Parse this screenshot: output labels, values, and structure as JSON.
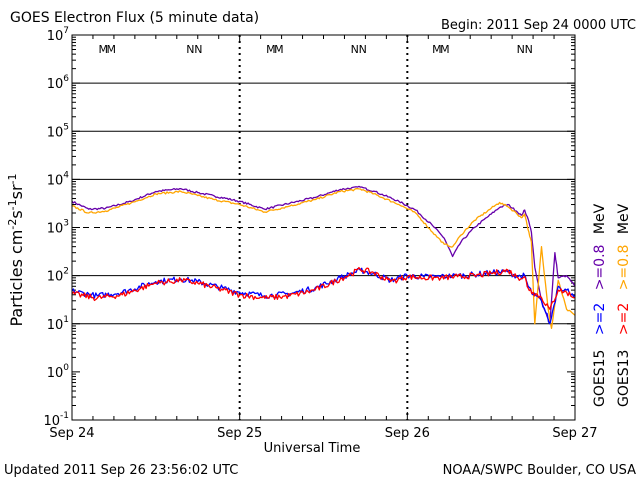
{
  "title": "GOES Electron Flux (5 minute data)",
  "begin_label": "Begin: 2011 Sep 24 0000 UTC",
  "updated_label": "Updated 2011 Sep 26 23:56:02 UTC",
  "credit_label": "NOAA/SWPC Boulder, CO USA",
  "colors": {
    "goes15_low": "#0000ff",
    "goes15_high": "#6600aa",
    "goes13_low": "#ff0000",
    "goes13_high": "#ffa500"
  },
  "chart_data": {
    "type": "line",
    "title": "GOES Electron Flux (5 minute data)",
    "xlabel": "Universal Time",
    "ylabel": "Particles cm-2s-1sr-1",
    "x_units": "days since 2011 Sep 24 0000 UTC",
    "xlim": [
      0,
      3
    ],
    "ylim_log10": [
      -1,
      7
    ],
    "y_scale": "log",
    "x_ticks": [
      {
        "value": 0,
        "label": "Sep 24"
      },
      {
        "value": 1,
        "label": "Sep 25"
      },
      {
        "value": 2,
        "label": "Sep 26"
      },
      {
        "value": 3,
        "label": "Sep 27"
      }
    ],
    "y_ticks": [
      {
        "exp": 7,
        "label_base": "10",
        "label_exp": "7"
      },
      {
        "exp": 6,
        "label_base": "10",
        "label_exp": "6"
      },
      {
        "exp": 5,
        "label_base": "10",
        "label_exp": "5"
      },
      {
        "exp": 4,
        "label_base": "10",
        "label_exp": "4"
      },
      {
        "exp": 3,
        "label_base": "10",
        "label_exp": "3"
      },
      {
        "exp": 2,
        "label_base": "10",
        "label_exp": "2"
      },
      {
        "exp": 1,
        "label_base": "10",
        "label_exp": "1"
      },
      {
        "exp": 0,
        "label_base": "10",
        "label_exp": "0"
      },
      {
        "exp": -1,
        "label_base": "10",
        "label_exp": "-1"
      }
    ],
    "solid_gridlines_exp": [
      1,
      2,
      4,
      5,
      6
    ],
    "dashed_gridlines_exp": [
      3
    ],
    "noon_day_markers": [
      0,
      1,
      2
    ],
    "position_markers": [
      {
        "x": 0.21,
        "label": "M"
      },
      {
        "x": 0.73,
        "label": "N"
      },
      {
        "x": 1.21,
        "label": "M"
      },
      {
        "x": 1.71,
        "label": "N"
      },
      {
        "x": 2.2,
        "label": "M"
      },
      {
        "x": 2.7,
        "label": "N"
      }
    ],
    "series": [
      {
        "name": "GOES15 >=0.8 MeV",
        "color": "#6600aa",
        "x": [
          0,
          0.1,
          0.2,
          0.35,
          0.5,
          0.65,
          0.75,
          0.85,
          1.0,
          1.15,
          1.3,
          1.45,
          1.6,
          1.72,
          1.8,
          1.95,
          2.05,
          2.15,
          2.22,
          2.27,
          2.32,
          2.4,
          2.5,
          2.55,
          2.6,
          2.65,
          2.68,
          2.7,
          2.72,
          2.74,
          2.76,
          2.8,
          2.85,
          2.88,
          2.9,
          2.95,
          3.0
        ],
        "y": [
          3500,
          2400,
          2500,
          3500,
          5600,
          6400,
          5300,
          4500,
          3500,
          2400,
          3200,
          4200,
          6200,
          6900,
          5700,
          3500,
          2300,
          1100,
          600,
          250,
          500,
          1000,
          1900,
          2600,
          3000,
          2200,
          1800,
          2300,
          1500,
          800,
          150,
          30,
          10,
          300,
          90,
          100,
          60
        ]
      },
      {
        "name": "GOES13 >=0.8 MeV",
        "color": "#ffa500",
        "x": [
          0,
          0.1,
          0.2,
          0.35,
          0.5,
          0.65,
          0.75,
          0.85,
          1.0,
          1.15,
          1.3,
          1.45,
          1.6,
          1.72,
          1.8,
          1.95,
          2.05,
          2.15,
          2.22,
          2.27,
          2.32,
          2.4,
          2.5,
          2.55,
          2.6,
          2.65,
          2.68,
          2.7,
          2.72,
          2.74,
          2.76,
          2.8,
          2.84,
          2.86,
          2.9,
          2.95,
          3.0
        ],
        "y": [
          2800,
          2000,
          2200,
          3200,
          5000,
          5600,
          4600,
          3800,
          3000,
          2100,
          2800,
          3800,
          5600,
          6300,
          5000,
          3000,
          2000,
          800,
          450,
          400,
          700,
          1400,
          2500,
          3300,
          2700,
          2000,
          1600,
          1900,
          900,
          500,
          10,
          400,
          20,
          8,
          80,
          20,
          15
        ]
      },
      {
        "name": "GOES15 >=2 MeV",
        "color": "#0000ff",
        "x": [
          0,
          0.15,
          0.3,
          0.5,
          0.65,
          0.75,
          0.9,
          1.0,
          1.15,
          1.3,
          1.45,
          1.6,
          1.72,
          1.8,
          1.9,
          2.0,
          2.1,
          2.2,
          2.3,
          2.4,
          2.5,
          2.6,
          2.66,
          2.7,
          2.72,
          2.75,
          2.8,
          2.85,
          2.9,
          2.95,
          3.0
        ],
        "y": [
          48,
          38,
          45,
          75,
          85,
          75,
          55,
          45,
          38,
          42,
          55,
          90,
          130,
          110,
          80,
          100,
          95,
          95,
          100,
          105,
          115,
          120,
          95,
          100,
          60,
          40,
          30,
          10,
          60,
          50,
          40
        ]
      },
      {
        "name": "GOES13 >=2 MeV",
        "color": "#ff0000",
        "x": [
          0,
          0.15,
          0.3,
          0.5,
          0.65,
          0.75,
          0.9,
          1.0,
          1.15,
          1.3,
          1.45,
          1.6,
          1.72,
          1.8,
          1.9,
          2.0,
          2.1,
          2.2,
          2.3,
          2.4,
          2.5,
          2.6,
          2.66,
          2.7,
          2.72,
          2.75,
          2.8,
          2.85,
          2.9,
          2.95,
          3.0
        ],
        "y": [
          42,
          34,
          40,
          70,
          80,
          70,
          50,
          40,
          34,
          38,
          50,
          85,
          135,
          115,
          75,
          95,
          90,
          90,
          95,
          100,
          110,
          130,
          90,
          95,
          55,
          45,
          35,
          20,
          50,
          45,
          35
        ]
      }
    ],
    "legend": {
      "placement": "right-vertical",
      "goes15": {
        "sat": "GOES15",
        "low": ">=2",
        "high": ">=0.8",
        "unit": "MeV"
      },
      "goes13": {
        "sat": "GOES13",
        "low": ">=2",
        "high": ">=0.8",
        "unit": "MeV"
      }
    }
  }
}
